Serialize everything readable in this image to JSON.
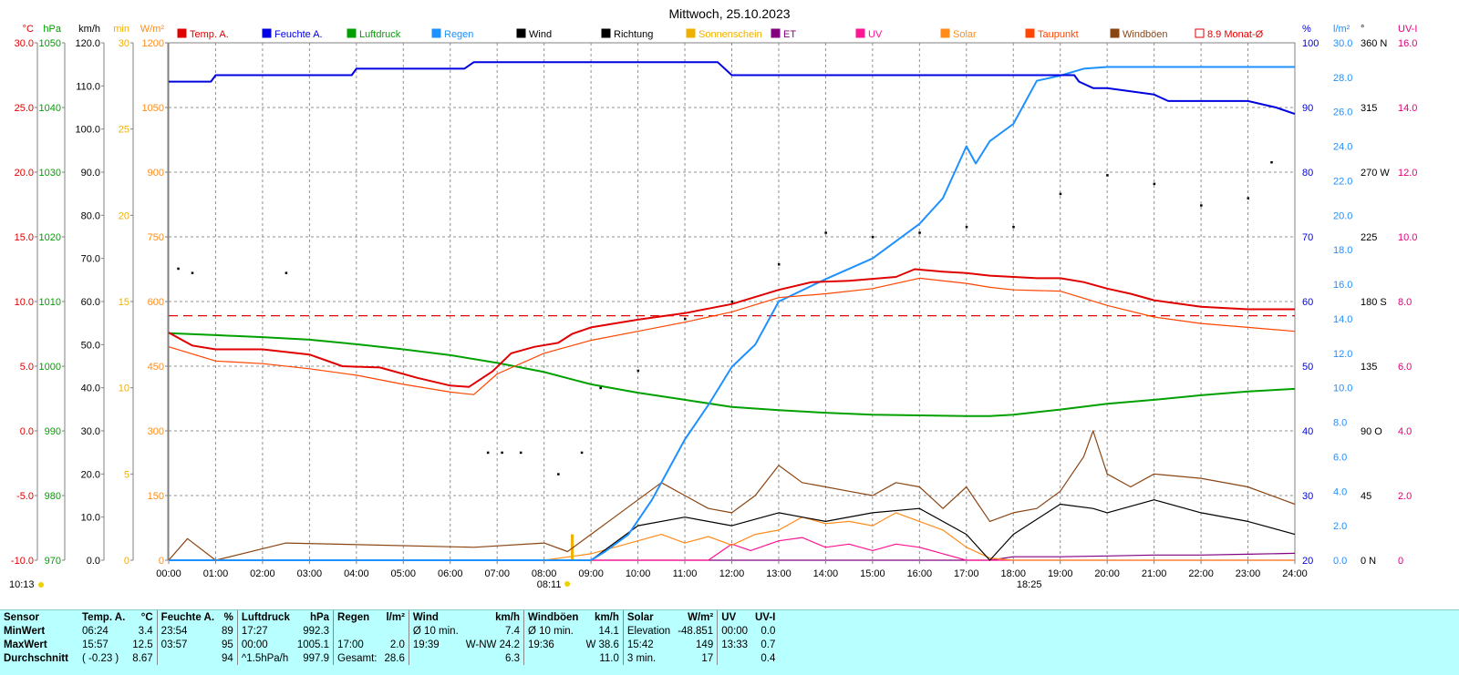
{
  "title": "Mittwoch, 25.10.2023",
  "legend": [
    {
      "label": "Temp. A.",
      "color": "#e00000"
    },
    {
      "label": "Feuchte A.",
      "color": "#0000e0"
    },
    {
      "label": "Luftdruck",
      "color": "#00a000"
    },
    {
      "label": "Regen",
      "color": "#1e90ff"
    },
    {
      "label": "Wind",
      "color": "#000000"
    },
    {
      "label": "Richtung",
      "color": "#000000"
    },
    {
      "label": "Sonnenschein",
      "color": "#f0b000"
    },
    {
      "label": "ET",
      "color": "#800080"
    },
    {
      "label": "UV",
      "color": "#ff1493"
    },
    {
      "label": "Solar",
      "color": "#ff8c1a"
    },
    {
      "label": "Taupunkt",
      "color": "#ff4500"
    },
    {
      "label": "Windböen",
      "color": "#8b4513"
    },
    {
      "label": "8.9 Monat-Ø",
      "color": "#e00000"
    }
  ],
  "axes": {
    "left": [
      {
        "unit": "°C",
        "color": "#e00000",
        "ticks": [
          "30.0",
          "25.0",
          "20.0",
          "15.0",
          "10.0",
          "5.0",
          "0.0",
          "-5.0",
          "-10.0"
        ]
      },
      {
        "unit": "hPa",
        "color": "#00a000",
        "ticks": [
          "1050",
          "1040",
          "1030",
          "1020",
          "1010",
          "1000",
          "990",
          "980",
          "970"
        ]
      },
      {
        "unit": "km/h",
        "color": "#000000",
        "ticks": [
          "120.0",
          "110.0",
          "100.0",
          "90.0",
          "80.0",
          "70.0",
          "60.0",
          "50.0",
          "40.0",
          "30.0",
          "20.0",
          "10.0",
          "0.0"
        ]
      },
      {
        "unit": "min",
        "color": "#f0b000",
        "ticks": [
          "30",
          "25",
          "20",
          "15",
          "10",
          "5",
          "0"
        ]
      },
      {
        "unit": "W/m²",
        "color": "#ff8c1a",
        "ticks": [
          "1200",
          "1050",
          "900",
          "750",
          "600",
          "450",
          "300",
          "150",
          "0"
        ]
      }
    ],
    "right": [
      {
        "unit": "%",
        "color": "#0000e0",
        "ticks": [
          "100",
          "90",
          "80",
          "70",
          "60",
          "50",
          "40",
          "30",
          "20"
        ]
      },
      {
        "unit": "l/m²",
        "color": "#1e90ff",
        "ticks": [
          "30.0",
          "28.0",
          "26.0",
          "24.0",
          "22.0",
          "20.0",
          "18.0",
          "16.0",
          "14.0",
          "12.0",
          "10.0",
          "8.0",
          "6.0",
          "4.0",
          "2.0",
          "0.0"
        ]
      },
      {
        "unit": "°",
        "color": "#000000",
        "ticks": [
          "360 N",
          "315",
          "270 W",
          "225",
          "180 S",
          "135",
          "90 O",
          "45",
          "0 N"
        ]
      },
      {
        "unit": "UV-I",
        "color": "#e0007a",
        "ticks": [
          "16.0",
          "14.0",
          "12.0",
          "10.0",
          "8.0",
          "6.0",
          "4.0",
          "2.0",
          "0"
        ]
      }
    ],
    "x_ticks": [
      "00:00",
      "01:00",
      "02:00",
      "03:00",
      "04:00",
      "05:00",
      "06:00",
      "07:00",
      "08:00",
      "09:00",
      "10:00",
      "11:00",
      "12:00",
      "13:00",
      "14:00",
      "15:00",
      "16:00",
      "17:00",
      "18:00",
      "19:00",
      "20:00",
      "21:00",
      "22:00",
      "23:00",
      "24:00"
    ],
    "sunrise": "08:11",
    "sunset": "18:25",
    "corner_time": "10:13"
  },
  "chart_data": {
    "type": "line",
    "title": "Mittwoch, 25.10.2023",
    "x_range_hours": [
      0,
      24
    ],
    "month_avg_temp": 8.9,
    "series": [
      {
        "name": "Temp. A.",
        "unit": "°C",
        "x": [
          0,
          0.5,
          1,
          2,
          3,
          3.7,
          4.5,
          5.3,
          6,
          6.4,
          6.9,
          7.3,
          7.8,
          8.3,
          8.6,
          9,
          10,
          11,
          12,
          13,
          13.7,
          14.5,
          15.5,
          15.9,
          16.5,
          17,
          17.5,
          18,
          18.5,
          19,
          19.5,
          20,
          20.5,
          21,
          22,
          23,
          24
        ],
        "y": [
          7.6,
          6.6,
          6.3,
          6.3,
          5.9,
          5.0,
          4.9,
          4.1,
          3.5,
          3.4,
          4.6,
          6.0,
          6.5,
          6.8,
          7.5,
          8.0,
          8.6,
          9.1,
          9.8,
          10.9,
          11.5,
          11.6,
          11.9,
          12.5,
          12.3,
          12.2,
          12.0,
          11.9,
          11.8,
          11.8,
          11.5,
          11.0,
          10.6,
          10.1,
          9.6,
          9.4,
          9.4
        ]
      },
      {
        "name": "Taupunkt",
        "unit": "°C",
        "x": [
          0,
          1,
          2,
          3,
          4,
          5,
          6,
          6.5,
          7,
          8,
          9,
          10,
          11,
          12,
          13,
          14,
          15,
          16,
          17,
          17.5,
          18,
          19,
          20,
          21,
          22,
          23,
          24
        ],
        "y": [
          6.5,
          5.4,
          5.2,
          4.8,
          4.3,
          3.6,
          3.0,
          2.8,
          4.4,
          6.0,
          7.0,
          7.7,
          8.4,
          9.2,
          10.3,
          10.6,
          11.0,
          11.8,
          11.4,
          11.1,
          10.9,
          10.8,
          9.7,
          8.8,
          8.3,
          8.0,
          7.7
        ]
      },
      {
        "name": "Feuchte A.",
        "unit": "%",
        "x": [
          0,
          0.9,
          1,
          3.9,
          4,
          4.8,
          6.3,
          6.5,
          10,
          11.7,
          12,
          13.4,
          14,
          17.5,
          18,
          19.3,
          19.4,
          19.7,
          20,
          21,
          21.3,
          22,
          22.2,
          23,
          23.6,
          24
        ],
        "y": [
          94,
          94,
          95,
          95,
          96,
          96,
          96,
          97,
          97,
          97,
          95,
          95,
          95,
          95,
          95,
          95,
          94,
          93,
          93,
          92,
          91,
          91,
          91,
          91,
          90,
          89
        ]
      },
      {
        "name": "Luftdruck",
        "unit": "hPa",
        "x": [
          0,
          1,
          2,
          3,
          4,
          5,
          6,
          7,
          8,
          9,
          10,
          11,
          12,
          13,
          14,
          15,
          16,
          17,
          17.5,
          18,
          19,
          20,
          21,
          22,
          23,
          24
        ],
        "y": [
          1005.1,
          1004.8,
          1004.5,
          1004.1,
          1003.4,
          1002.6,
          1001.7,
          1000.5,
          999.1,
          997.2,
          995.9,
          994.8,
          993.7,
          993.2,
          992.8,
          992.5,
          992.4,
          992.3,
          992.3,
          992.5,
          993.3,
          994.2,
          994.8,
          995.5,
          996.1,
          996.5
        ]
      },
      {
        "name": "Regen",
        "unit": "l/m²",
        "x": [
          0,
          9,
          9.3,
          9.8,
          10.3,
          11,
          11.5,
          12,
          12.5,
          13,
          14,
          15,
          16,
          16.5,
          17,
          17.2,
          17.5,
          18,
          18.5,
          19,
          19.5,
          20,
          21,
          22,
          23,
          24
        ],
        "y": [
          0,
          0,
          0.5,
          1.5,
          3.5,
          7.0,
          9.0,
          11.2,
          12.5,
          15.0,
          16.3,
          17.5,
          19.5,
          21.0,
          24.0,
          23.0,
          24.3,
          25.3,
          27.8,
          28.1,
          28.5,
          28.6,
          28.6,
          28.6,
          28.6,
          28.6
        ]
      },
      {
        "name": "Wind",
        "unit": "km/h",
        "x": [
          0,
          1,
          2,
          3,
          6,
          7,
          8,
          9,
          10,
          11,
          12,
          13,
          14,
          15,
          16,
          17,
          17.5,
          18,
          19,
          19.7,
          20,
          21,
          22,
          23,
          24
        ],
        "y": [
          0,
          0,
          0,
          0,
          0,
          0,
          0,
          0,
          8,
          10,
          8,
          11,
          9,
          11,
          12,
          6,
          0,
          6,
          13,
          12,
          11,
          14,
          11,
          9,
          6
        ]
      },
      {
        "name": "Windböen",
        "unit": "km/h",
        "x": [
          0,
          0.4,
          1,
          2.5,
          6.5,
          8,
          8.5,
          9,
          9.5,
          10,
          10.5,
          11,
          11.5,
          12,
          12.5,
          13,
          13.5,
          14,
          14.5,
          15,
          15.5,
          16,
          16.5,
          17,
          17.5,
          18,
          18.5,
          19,
          19.5,
          19.7,
          20,
          20.5,
          21,
          22,
          23,
          24
        ],
        "y": [
          0,
          5,
          0,
          4,
          3,
          4,
          2,
          6,
          10,
          14,
          18,
          15,
          12,
          11,
          15,
          22,
          18,
          17,
          16,
          15,
          18,
          17,
          12,
          17,
          9,
          11,
          12,
          16,
          24,
          30,
          20,
          17,
          20,
          19,
          17,
          13
        ]
      },
      {
        "name": "Solar",
        "unit": "W/m²",
        "x": [
          0,
          8,
          9,
          9.5,
          10,
          10.5,
          11,
          11.5,
          12,
          12.5,
          13,
          13.5,
          14,
          14.5,
          15,
          15.5,
          16,
          16.5,
          17,
          17.5,
          18,
          19,
          24
        ],
        "y": [
          0,
          0,
          15,
          30,
          45,
          60,
          40,
          55,
          35,
          60,
          70,
          100,
          85,
          90,
          80,
          110,
          90,
          70,
          30,
          5,
          0,
          0,
          0
        ]
      },
      {
        "name": "Sonnenschein",
        "unit": "min",
        "x": [
          8.6,
          8.6
        ],
        "y": [
          0,
          1.5
        ]
      },
      {
        "name": "UV",
        "unit": "UV-I",
        "x": [
          0,
          11.5,
          12,
          12.4,
          13,
          13.5,
          14,
          14.5,
          15,
          15.5,
          16,
          16.5,
          17,
          24
        ],
        "y": [
          0,
          0,
          0.5,
          0.3,
          0.6,
          0.7,
          0.4,
          0.5,
          0.3,
          0.5,
          0.4,
          0.2,
          0,
          0
        ]
      },
      {
        "name": "ET",
        "unit": "l/m²",
        "x": [
          0,
          17.5,
          18,
          19,
          20,
          21,
          22,
          23,
          24
        ],
        "y": [
          0,
          0,
          0.2,
          0.2,
          0.25,
          0.3,
          0.3,
          0.35,
          0.4
        ]
      },
      {
        "name": "Richtung",
        "unit": "°",
        "x": [
          0.2,
          0.5,
          2.5,
          6.8,
          7.1,
          7.5,
          8.3,
          8.8,
          9.2,
          10,
          11,
          12,
          13,
          14,
          15,
          16,
          17,
          18,
          19,
          20,
          21,
          22,
          23,
          23.5
        ],
        "y": [
          203,
          200,
          200,
          75,
          75,
          75,
          60,
          75,
          120,
          132,
          168,
          180,
          206,
          228,
          225,
          228,
          232,
          232,
          255,
          268,
          262,
          247,
          252,
          277
        ]
      }
    ]
  },
  "stats": {
    "headers": {
      "sensor": "Sensor",
      "temp": {
        "name": "Temp. A.",
        "unit": "°C"
      },
      "hum": {
        "name": "Feuchte A.",
        "unit": "%"
      },
      "press": {
        "name": "Luftdruck",
        "unit": "hPa"
      },
      "rain": {
        "name": "Regen",
        "unit": "l/m²"
      },
      "wind": {
        "name": "Wind",
        "unit": "km/h"
      },
      "gust": {
        "name": "Windböen",
        "unit": "km/h"
      },
      "solar": {
        "name": "Solar",
        "unit": "W/m²"
      },
      "uv": {
        "name": "UV",
        "unit": "UV-I"
      }
    },
    "rows": [
      {
        "label": "MinWert",
        "temp_t": "06:24",
        "temp_v": "3.4",
        "hum_t": "23:54",
        "hum_v": "89",
        "press_t": "17:27",
        "press_v": "992.3",
        "rain_t": "",
        "rain_v": "",
        "wind_t": "Ø 10 min.",
        "wind_v": "7.4",
        "gust_t": "Ø 10 min.",
        "gust_v": "14.1",
        "solar_t": "Elevation",
        "solar_v": "-48.851",
        "uv_t": "00:00",
        "uv_v": "0.0"
      },
      {
        "label": "MaxWert",
        "temp_t": "15:57",
        "temp_v": "12.5",
        "hum_t": "03:57",
        "hum_v": "95",
        "press_t": "00:00",
        "press_v": "1005.1",
        "rain_t": "17:00",
        "rain_v": "2.0",
        "wind_t": "19:39",
        "wind_v": "W-NW 24.2",
        "gust_t": "19:36",
        "gust_v": "W 38.6",
        "solar_t": "15:42",
        "solar_v": "149",
        "uv_t": "13:33",
        "uv_v": "0.7"
      },
      {
        "label": "Durchschnitt",
        "temp_t": "( -0.23 )",
        "temp_v": "8.67",
        "hum_t": "",
        "hum_v": "94",
        "press_t": "^1.5hPa/h",
        "press_v": "997.9",
        "rain_t": "Gesamt:",
        "rain_v": "28.6",
        "wind_t": "",
        "wind_v": "6.3",
        "gust_t": "",
        "gust_v": "11.0",
        "solar_t": "3 min.",
        "solar_v": "17",
        "uv_t": "",
        "uv_v": "0.4"
      }
    ]
  }
}
